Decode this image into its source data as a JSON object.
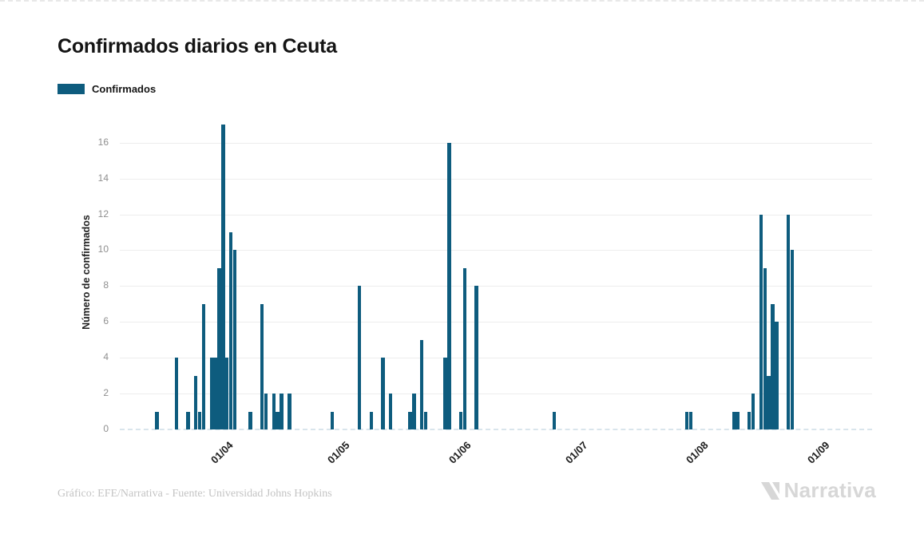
{
  "title": "Confirmados diarios en Ceuta",
  "legend": {
    "label": "Confirmados",
    "swatch_color": "#0e5c7e"
  },
  "footer": {
    "credit": "Gráfico: EFE/Narrativa - Fuente: Universidad Johns Hopkins",
    "brand": "Narrativa"
  },
  "colors": {
    "bar": "#0e5c7e",
    "gridline": "#ededed",
    "baseline_dash": "#d9e5ec",
    "ytick_text": "#8f8f8f",
    "xtick_text": "#1c1c1c",
    "brand_gray": "#d7d7d7"
  },
  "chart_data": {
    "type": "bar",
    "title": "Confirmados diarios en Ceuta",
    "xlabel": "",
    "ylabel": "Número de confirmados",
    "series_name": "Confirmados",
    "bar_color": "#0e5c7e",
    "grid": true,
    "legend_position": "top-left",
    "ylim": [
      0,
      17.5
    ],
    "yticks": [
      0,
      2,
      4,
      6,
      8,
      10,
      12,
      14,
      16
    ],
    "x_axis": {
      "total_days": 193,
      "month_ticks": [
        {
          "label": "01/04",
          "day": 25
        },
        {
          "label": "01/05",
          "day": 55
        },
        {
          "label": "01/06",
          "day": 86
        },
        {
          "label": "01/07",
          "day": 116
        },
        {
          "label": "01/08",
          "day": 147
        },
        {
          "label": "01/09",
          "day": 178
        }
      ]
    },
    "points": [
      {
        "day": 9,
        "value": 1
      },
      {
        "day": 14,
        "value": 4
      },
      {
        "day": 17,
        "value": 1
      },
      {
        "day": 19,
        "value": 3
      },
      {
        "day": 20,
        "value": 1
      },
      {
        "day": 21,
        "value": 7
      },
      {
        "day": 23,
        "value": 4
      },
      {
        "day": 24,
        "value": 4
      },
      {
        "day": 25,
        "value": 9
      },
      {
        "day": 26,
        "value": 17
      },
      {
        "day": 27,
        "value": 4
      },
      {
        "day": 28,
        "value": 11
      },
      {
        "day": 29,
        "value": 10
      },
      {
        "day": 33,
        "value": 1
      },
      {
        "day": 36,
        "value": 7
      },
      {
        "day": 37,
        "value": 2
      },
      {
        "day": 39,
        "value": 2
      },
      {
        "day": 40,
        "value": 1
      },
      {
        "day": 41,
        "value": 2
      },
      {
        "day": 43,
        "value": 2
      },
      {
        "day": 54,
        "value": 1
      },
      {
        "day": 61,
        "value": 8
      },
      {
        "day": 64,
        "value": 1
      },
      {
        "day": 67,
        "value": 4
      },
      {
        "day": 69,
        "value": 2
      },
      {
        "day": 74,
        "value": 1
      },
      {
        "day": 75,
        "value": 2
      },
      {
        "day": 77,
        "value": 5
      },
      {
        "day": 78,
        "value": 1
      },
      {
        "day": 83,
        "value": 4
      },
      {
        "day": 84,
        "value": 16
      },
      {
        "day": 87,
        "value": 1
      },
      {
        "day": 88,
        "value": 9
      },
      {
        "day": 91,
        "value": 8
      },
      {
        "day": 111,
        "value": 1
      },
      {
        "day": 145,
        "value": 1
      },
      {
        "day": 146,
        "value": 1
      },
      {
        "day": 157,
        "value": 1
      },
      {
        "day": 158,
        "value": 1
      },
      {
        "day": 161,
        "value": 1
      },
      {
        "day": 162,
        "value": 2
      },
      {
        "day": 164,
        "value": 12
      },
      {
        "day": 165,
        "value": 9
      },
      {
        "day": 166,
        "value": 3
      },
      {
        "day": 167,
        "value": 7
      },
      {
        "day": 168,
        "value": 6
      },
      {
        "day": 171,
        "value": 12
      },
      {
        "day": 172,
        "value": 10
      }
    ]
  }
}
